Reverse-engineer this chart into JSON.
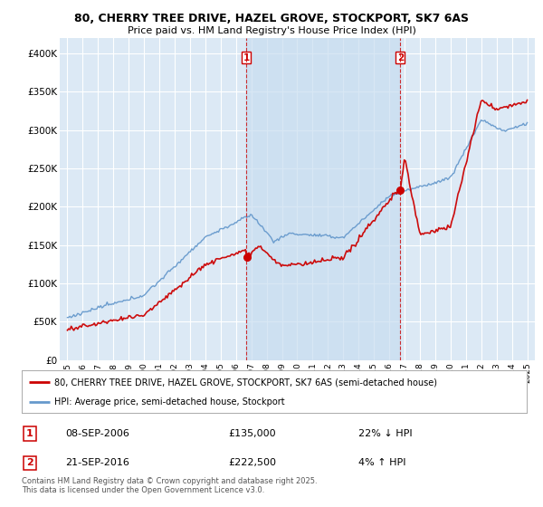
{
  "title": "80, CHERRY TREE DRIVE, HAZEL GROVE, STOCKPORT, SK7 6AS",
  "subtitle": "Price paid vs. HM Land Registry's House Price Index (HPI)",
  "background_color": "#ffffff",
  "plot_bg_color": "#dce9f5",
  "grid_color": "#ffffff",
  "shade_color": "#c8ddf0",
  "red_color": "#cc0000",
  "blue_color": "#6699cc",
  "transaction1": {
    "date_x": 2006.68,
    "price": 135000,
    "label": "1",
    "date_str": "08-SEP-2006",
    "pct": "22%",
    "dir": "↓"
  },
  "transaction2": {
    "date_x": 2016.72,
    "price": 222500,
    "label": "2",
    "date_str": "21-SEP-2016",
    "pct": "4%",
    "dir": "↑"
  },
  "legend_line1": "80, CHERRY TREE DRIVE, HAZEL GROVE, STOCKPORT, SK7 6AS (semi-detached house)",
  "legend_line2": "HPI: Average price, semi-detached house, Stockport",
  "footer": "Contains HM Land Registry data © Crown copyright and database right 2025.\nThis data is licensed under the Open Government Licence v3.0.",
  "ylim": [
    0,
    420000
  ],
  "xlim": [
    1994.5,
    2025.5
  ],
  "yticks": [
    0,
    50000,
    100000,
    150000,
    200000,
    250000,
    300000,
    350000,
    400000
  ],
  "ytick_labels": [
    "£0",
    "£50K",
    "£100K",
    "£150K",
    "£200K",
    "£250K",
    "£300K",
    "£350K",
    "£400K"
  ],
  "xticks": [
    1995,
    1996,
    1997,
    1998,
    1999,
    2000,
    2001,
    2002,
    2003,
    2004,
    2005,
    2006,
    2007,
    2008,
    2009,
    2010,
    2011,
    2012,
    2013,
    2014,
    2015,
    2016,
    2017,
    2018,
    2019,
    2020,
    2021,
    2022,
    2023,
    2024,
    2025
  ]
}
